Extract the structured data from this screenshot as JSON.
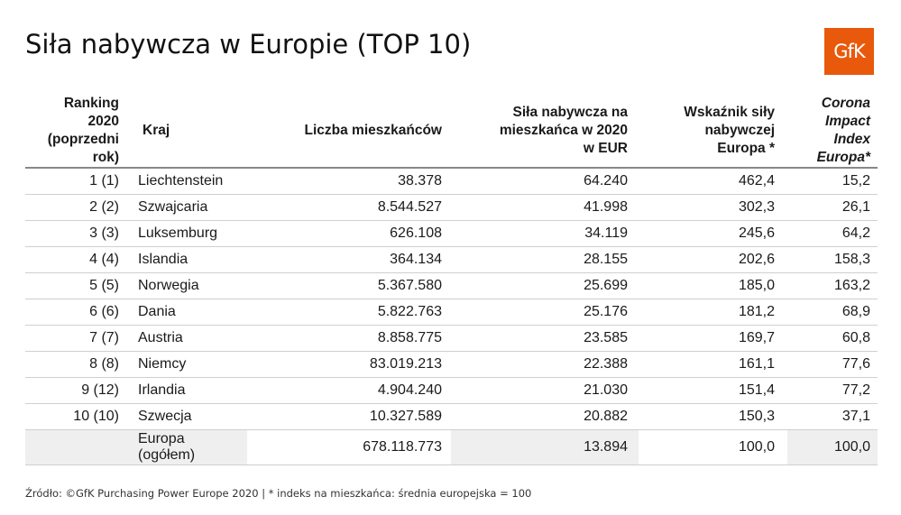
{
  "title": "Siła nabywcza w Europie (TOP 10)",
  "logo": "GfK",
  "headers": {
    "rank": [
      "Ranking",
      "2020",
      "(poprzedni",
      "rok)"
    ],
    "country": "Kraj",
    "population": "Liczba mieszkańców",
    "power": [
      "Siła nabywcza na",
      "mieszkańca w 2020",
      "w EUR"
    ],
    "index": [
      "Wskaźnik siły",
      "nabywczej",
      "Europa *"
    ],
    "corona": [
      "Corona",
      "Impact",
      "Index",
      "Europa*"
    ]
  },
  "rows": [
    {
      "rank": "1 (1)",
      "country": "Liechtenstein",
      "population": "38.378",
      "power": "64.240",
      "index": "462,4",
      "corona": "15,2"
    },
    {
      "rank": "2 (2)",
      "country": "Szwajcaria",
      "population": "8.544.527",
      "power": "41.998",
      "index": "302,3",
      "corona": "26,1"
    },
    {
      "rank": "3 (3)",
      "country": "Luksemburg",
      "population": "626.108",
      "power": "34.119",
      "index": "245,6",
      "corona": "64,2"
    },
    {
      "rank": "4 (4)",
      "country": "Islandia",
      "population": "364.134",
      "power": "28.155",
      "index": "202,6",
      "corona": "158,3"
    },
    {
      "rank": "5 (5)",
      "country": "Norwegia",
      "population": "5.367.580",
      "power": "25.699",
      "index": "185,0",
      "corona": "163,2"
    },
    {
      "rank": "6 (6)",
      "country": "Dania",
      "population": "5.822.763",
      "power": "25.176",
      "index": "181,2",
      "corona": "68,9"
    },
    {
      "rank": "7 (7)",
      "country": "Austria",
      "population": "8.858.775",
      "power": "23.585",
      "index": "169,7",
      "corona": "60,8"
    },
    {
      "rank": "8 (8)",
      "country": "Niemcy",
      "population": "83.019.213",
      "power": "22.388",
      "index": "161,1",
      "corona": "77,6"
    },
    {
      "rank": "9 (12)",
      "country": "Irlandia",
      "population": "4.904.240",
      "power": "21.030",
      "index": "151,4",
      "corona": "77,2"
    },
    {
      "rank": "10 (10)",
      "country": "Szwecja",
      "population": "10.327.589",
      "power": "20.882",
      "index": "150,3",
      "corona": "37,1"
    }
  ],
  "total": {
    "country": [
      "Europa",
      "(ogółem)"
    ],
    "population": "678.118.773",
    "power": "13.894",
    "index": "100,0",
    "corona": "100,0"
  },
  "source": "Źródło: ©GfK Purchasing Power Europe 2020 | * indeks na mieszkańca: średnia europejska = 100"
}
